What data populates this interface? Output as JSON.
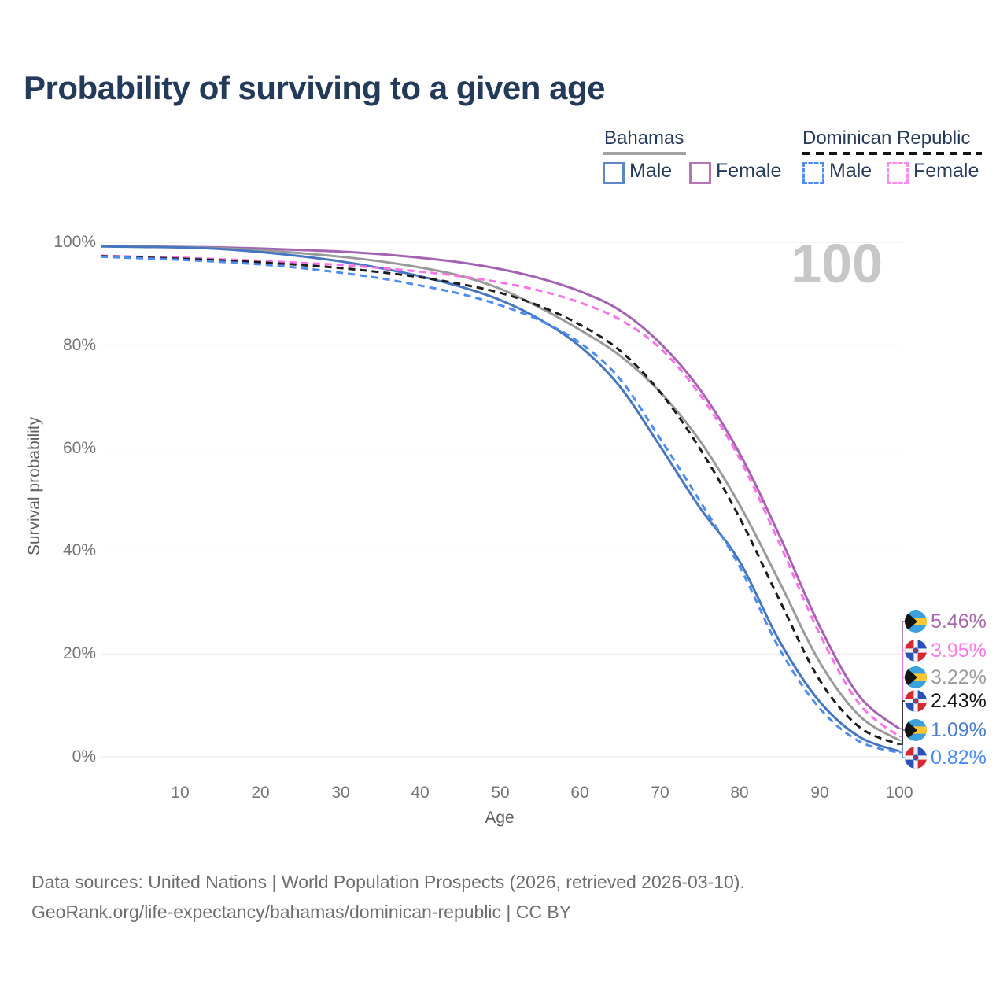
{
  "title": "Probability of surviving to a given age",
  "legend": {
    "groups": [
      {
        "label": "Bahamas",
        "underline_style": "solid",
        "underline_color": "#a1a1a1",
        "items": [
          {
            "label": "Male",
            "color": "#5b87c5",
            "dashed": false
          },
          {
            "label": "Female",
            "color": "#b775b8",
            "dashed": false
          }
        ]
      },
      {
        "label": "Dominican Republic",
        "underline_style": "dashed",
        "underline_color": "#141414",
        "items": [
          {
            "label": "Male",
            "color": "#4d8df0",
            "dashed": true
          },
          {
            "label": "Female",
            "color": "#fb8ae8",
            "dashed": true
          }
        ]
      }
    ]
  },
  "watermark": "100",
  "axes": {
    "y": {
      "label": "Survival probability",
      "ticks": [
        "100%",
        "80%",
        "60%",
        "40%",
        "20%",
        "0%"
      ]
    },
    "x": {
      "label": "Age",
      "ticks": [
        "10",
        "20",
        "30",
        "40",
        "50",
        "60",
        "70",
        "80",
        "90",
        "100"
      ]
    }
  },
  "end_labels": [
    {
      "flag": "bahamas",
      "value": "5.46%",
      "color": "#a767ae"
    },
    {
      "flag": "dominican-republic",
      "value": "3.95%",
      "color": "#fb7ae4"
    },
    {
      "flag": "bahamas",
      "value": "3.22%",
      "color": "#9b9b9b"
    },
    {
      "flag": "dominican-republic",
      "value": "2.43%",
      "color": "#141414"
    },
    {
      "flag": "bahamas",
      "value": "1.09%",
      "color": "#4a7cc9"
    },
    {
      "flag": "dominican-republic",
      "value": "0.82%",
      "color": "#4b8bf0"
    }
  ],
  "footer": {
    "line1": "Data sources: United Nations | World Population Prospects (2026, retrieved 2026-03-10).",
    "line2": "GeoRank.org/life-expectancy/bahamas/dominican-republic | CC BY"
  },
  "chart_data": {
    "type": "line",
    "title": "Probability of surviving to a given age",
    "xlabel": "Age",
    "ylabel": "Survival probability",
    "xlim": [
      0,
      100
    ],
    "ylim": [
      0,
      100
    ],
    "grid": true,
    "legend_position": "top-right",
    "highlighted_age": 100,
    "x": [
      0,
      5,
      10,
      15,
      20,
      25,
      30,
      35,
      40,
      45,
      50,
      55,
      60,
      65,
      70,
      75,
      80,
      85,
      90,
      95,
      100
    ],
    "series": [
      {
        "name": "Bahamas Female",
        "country": "Bahamas",
        "sex": "female",
        "style": "solid",
        "color": "#a363b2",
        "label_row": 0,
        "end_value_pct": 5.46,
        "values": [
          99.3,
          99.2,
          99.1,
          99.0,
          98.8,
          98.5,
          98.2,
          97.7,
          97.0,
          96.1,
          94.8,
          93.0,
          90.5,
          86.8,
          80.5,
          71.5,
          59.0,
          43.0,
          25.5,
          11.8,
          5.46
        ]
      },
      {
        "name": "Bahamas (both sexes)",
        "country": "Bahamas",
        "sex": "both",
        "style": "solid",
        "color": "#9a9a9a",
        "label_row": 2,
        "end_value_pct": 3.22,
        "values": [
          99.25,
          99.15,
          99.05,
          98.85,
          98.45,
          97.9,
          97.2,
          96.3,
          95.1,
          93.5,
          91.0,
          87.3,
          83.0,
          78.0,
          71.0,
          61.5,
          49.0,
          34.0,
          18.5,
          8.0,
          3.22
        ]
      },
      {
        "name": "Bahamas Male",
        "country": "Bahamas",
        "sex": "male",
        "style": "solid",
        "color": "#4576bf",
        "label_row": 4,
        "end_value_pct": 1.09,
        "values": [
          99.2,
          99.1,
          99.0,
          98.7,
          98.1,
          97.3,
          96.3,
          95.0,
          93.4,
          91.4,
          88.8,
          85.0,
          79.8,
          72.0,
          60.5,
          48.5,
          38.0,
          22.5,
          10.8,
          3.9,
          1.09
        ]
      },
      {
        "name": "Dominican Republic Female",
        "country": "Dominican Republic",
        "sex": "female",
        "style": "dashed",
        "color": "#fb71e7",
        "label_row": 1,
        "end_value_pct": 3.95,
        "values": [
          97.4,
          97.2,
          97.0,
          96.7,
          96.4,
          96.0,
          95.6,
          95.0,
          94.3,
          93.4,
          92.2,
          90.6,
          88.3,
          85.0,
          79.5,
          70.5,
          58.0,
          41.5,
          24.0,
          10.3,
          3.95
        ]
      },
      {
        "name": "Dominican Republic (both sexes)",
        "country": "Dominican Republic",
        "sex": "both",
        "style": "dashed",
        "color": "#1c1c1c",
        "label_row": 3,
        "end_value_pct": 2.43,
        "values": [
          97.3,
          97.05,
          96.8,
          96.5,
          96.1,
          95.6,
          95.0,
          94.2,
          93.2,
          91.9,
          90.2,
          87.6,
          84.0,
          79.0,
          71.0,
          60.0,
          46.5,
          30.5,
          15.0,
          5.8,
          2.43
        ]
      },
      {
        "name": "Dominican Republic Male",
        "country": "Dominican Republic",
        "sex": "male",
        "style": "dashed",
        "color": "#4f8cf0",
        "label_row": 5,
        "end_value_pct": 0.82,
        "values": [
          97.2,
          96.9,
          96.6,
          96.2,
          95.7,
          95.0,
          94.1,
          93.0,
          91.6,
          90.0,
          87.8,
          84.8,
          80.5,
          73.5,
          62.0,
          49.8,
          37.0,
          21.0,
          9.5,
          3.0,
          0.82
        ]
      }
    ]
  }
}
